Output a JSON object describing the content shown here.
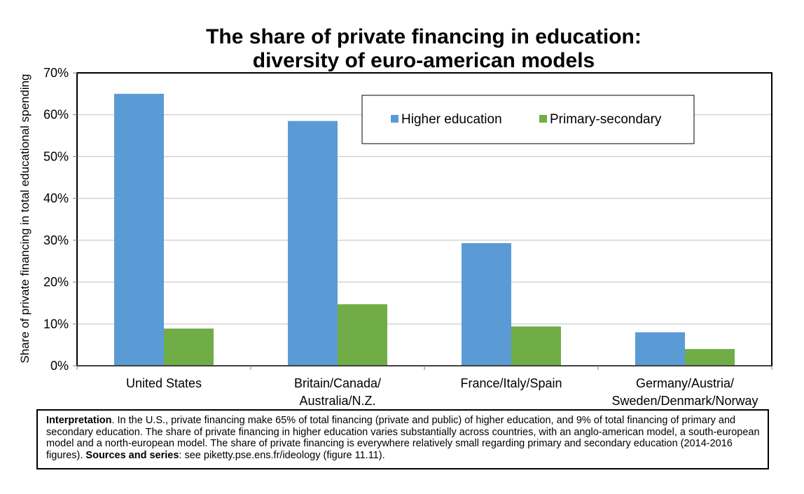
{
  "chart_data": {
    "type": "bar",
    "title_lines": [
      "The share of private financing in education:",
      "diversity of euro-american models"
    ],
    "ylabel": "Share of private financing in total educational spending",
    "xlabel": "",
    "ylim": [
      0,
      0.7
    ],
    "yticks": [
      0,
      0.1,
      0.2,
      0.3,
      0.4,
      0.5,
      0.6,
      0.7
    ],
    "ytick_labels": [
      "0%",
      "10%",
      "20%",
      "30%",
      "40%",
      "50%",
      "60%",
      "70%"
    ],
    "grid": true,
    "legend_position": "top-right",
    "categories": [
      [
        "United States"
      ],
      [
        "Britain/Canada/",
        "Australia/N.Z."
      ],
      [
        "France/Italy/Spain"
      ],
      [
        "Germany/Austria/",
        "Sweden/Denmark/Norway"
      ]
    ],
    "series": [
      {
        "name": "Higher education",
        "color": "#5b9bd5",
        "values": [
          0.65,
          0.585,
          0.293,
          0.08
        ]
      },
      {
        "name": "Primary-secondary",
        "color": "#70ad47",
        "values": [
          0.089,
          0.147,
          0.094,
          0.04
        ]
      }
    ]
  },
  "note": {
    "interpretation_label": "Interpretation",
    "interpretation_text": ". In the U.S., private financing make 65% of total financing (private and public) of higher education, and 9% of total financing of primary and secondary education. The share of private financing in higher education varies substantially across countries, with an anglo-american model, a south-european model and a north-european model. The share of private financing is everywhere relatively small regarding primary and secondary education (2014-2016 figures).",
    "sources_label": "Sources and series",
    "sources_text": ": see piketty.pse.ens.fr/ideology (figure 11.11)."
  }
}
